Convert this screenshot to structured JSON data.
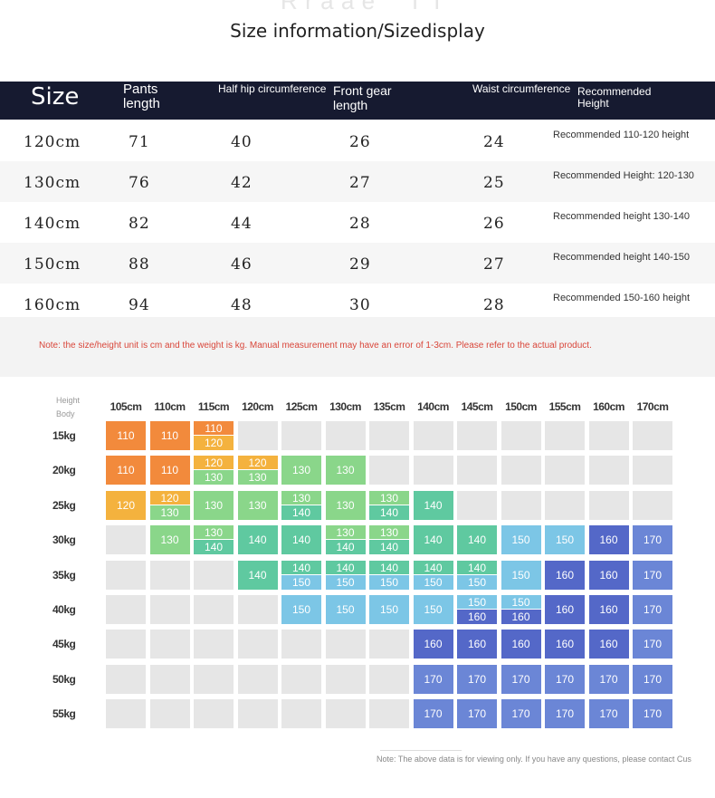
{
  "title": "Size information/Sizedisplay",
  "header": {
    "size": "Size",
    "pants_length": "Pants\nlength",
    "half_hip": "Half hip circumference",
    "front_gear": "Front gear\nlength",
    "waist": "Waist circumference",
    "recommended": "Recommended\nHeight"
  },
  "rows": [
    {
      "size": "120cm",
      "pants": "71",
      "hip": "40",
      "front": "26",
      "waist": "24",
      "rec": "Recommended 110-120 height"
    },
    {
      "size": "130cm",
      "pants": "76",
      "hip": "42",
      "front": "27",
      "waist": "25",
      "rec": "Recommended Height: 120-130"
    },
    {
      "size": "140cm",
      "pants": "82",
      "hip": "44",
      "front": "28",
      "waist": "26",
      "rec": "Recommended height 130-140"
    },
    {
      "size": "150cm",
      "pants": "88",
      "hip": "46",
      "front": "29",
      "waist": "27",
      "rec": "Recommended height 140-150"
    },
    {
      "size": "160cm",
      "pants": "94",
      "hip": "48",
      "front": "30",
      "waist": "28",
      "rec": "Recommended 150-160 height"
    }
  ],
  "note": "Note: the size/height unit is cm and the weight is kg. Manual measurement may have an error of 1-3cm. Please refer to the actual product.",
  "grid": {
    "corner_top": "Height",
    "corner_bottom": "Body",
    "heights": [
      "105cm",
      "110cm",
      "115cm",
      "120cm",
      "125cm",
      "130cm",
      "135cm",
      "140cm",
      "145cm",
      "150cm",
      "155cm",
      "160cm",
      "170cm"
    ],
    "weights": [
      "15kg",
      "20kg",
      "25kg",
      "30kg",
      "35kg",
      "40kg",
      "45kg",
      "50kg",
      "55kg"
    ],
    "colors": {
      "110": "#f28a3c",
      "120": "#f4b23e",
      "130": "#8ad68a",
      "140": "#5fc9a0",
      "150": "#7cc6e6",
      "160": "#5468c8",
      "170": "#6b86d6",
      "empty": "#e6e6e6"
    },
    "cells": [
      [
        [
          "110"
        ],
        [
          "110"
        ],
        [
          "110",
          "120"
        ],
        [],
        [],
        [],
        [],
        [],
        [],
        [],
        [],
        [],
        []
      ],
      [
        [
          "110"
        ],
        [
          "110"
        ],
        [
          "120",
          "130"
        ],
        [
          "120",
          "130"
        ],
        [
          "130"
        ],
        [
          "130"
        ],
        [],
        [],
        [],
        [],
        [],
        [],
        []
      ],
      [
        [
          "120"
        ],
        [
          "120",
          "130"
        ],
        [
          "130"
        ],
        [
          "130"
        ],
        [
          "130",
          "140"
        ],
        [
          "130"
        ],
        [
          "130",
          "140"
        ],
        [
          "140"
        ],
        [],
        [],
        [],
        [],
        []
      ],
      [
        [],
        [
          "130"
        ],
        [
          "130",
          "140"
        ],
        [
          "140"
        ],
        [
          "140"
        ],
        [
          "130",
          "140"
        ],
        [
          "130",
          "140"
        ],
        [
          "140"
        ],
        [
          "140"
        ],
        [
          "150"
        ],
        [
          "150"
        ],
        [
          "160"
        ],
        [
          "170"
        ]
      ],
      [
        [],
        [],
        [],
        [
          "140"
        ],
        [
          "140",
          "150"
        ],
        [
          "140",
          "150"
        ],
        [
          "140",
          "150"
        ],
        [
          "140",
          "150"
        ],
        [
          "140",
          "150"
        ],
        [
          "150"
        ],
        [
          "160"
        ],
        [
          "160"
        ],
        [
          "170"
        ]
      ],
      [
        [],
        [],
        [],
        [],
        [
          "150"
        ],
        [
          "150"
        ],
        [
          "150"
        ],
        [
          "150"
        ],
        [
          "150",
          "160"
        ],
        [
          "150",
          "160"
        ],
        [
          "160"
        ],
        [
          "160"
        ],
        [
          "170"
        ]
      ],
      [
        [],
        [],
        [],
        [],
        [],
        [],
        [],
        [
          "160"
        ],
        [
          "160"
        ],
        [
          "160"
        ],
        [
          "160"
        ],
        [
          "160"
        ],
        [
          "170"
        ]
      ],
      [
        [],
        [],
        [],
        [],
        [],
        [],
        [],
        [
          "170"
        ],
        [
          "170"
        ],
        [
          "170"
        ],
        [
          "170"
        ],
        [
          "170"
        ],
        [
          "170"
        ]
      ],
      [
        [],
        [],
        [],
        [],
        [],
        [],
        [],
        [
          "170"
        ],
        [
          "170"
        ],
        [
          "170"
        ],
        [
          "170"
        ],
        [
          "170"
        ],
        [
          "170"
        ]
      ]
    ]
  },
  "footer_note": "Note: The above data is for viewing only. If you have any questions, please contact Cus"
}
